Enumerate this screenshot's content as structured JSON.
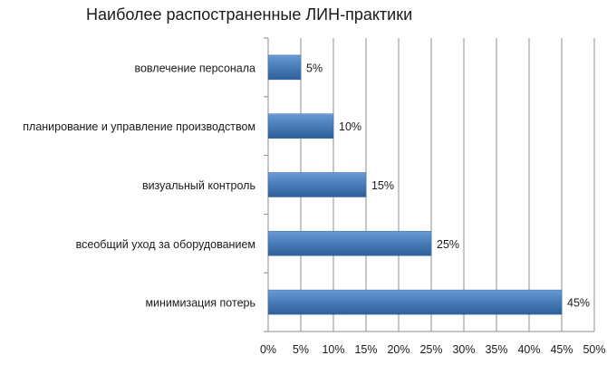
{
  "chart_data": {
    "type": "bar",
    "orientation": "horizontal",
    "title": "Наиболее распостраненные ЛИН-практики",
    "categories": [
      "вовлечение персонала",
      "планирование и управление производством",
      "визуальный контроль",
      "всеобщий уход за оборудованием",
      "минимизация потерь"
    ],
    "values": [
      5,
      10,
      15,
      25,
      45
    ],
    "value_labels": [
      "5%",
      "10%",
      "15%",
      "25%",
      "45%"
    ],
    "xlim": [
      0,
      50
    ],
    "x_ticks": [
      "0%",
      "5%",
      "10%",
      "15%",
      "20%",
      "25%",
      "30%",
      "35%",
      "40%",
      "45%",
      "50%"
    ],
    "grid": "vertical",
    "bar_color": "#4a7ebb",
    "xlabel": "",
    "ylabel": ""
  }
}
